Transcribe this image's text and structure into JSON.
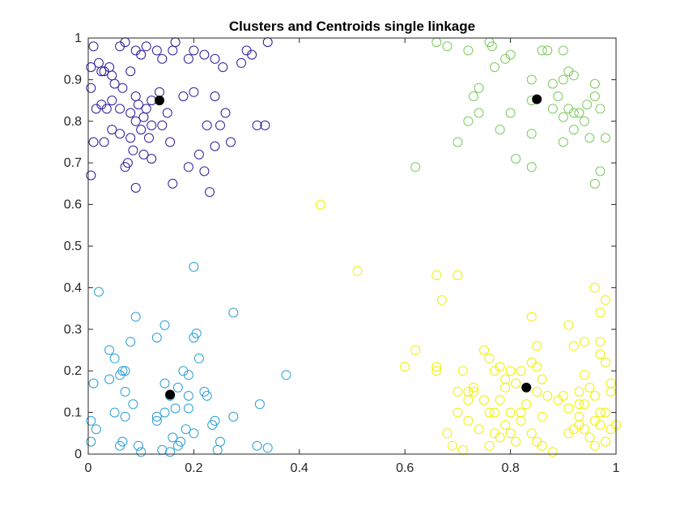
{
  "chart_data": {
    "type": "scatter",
    "title": "Clusters and Centroids single linkage",
    "xlabel": "",
    "ylabel": "",
    "xlim": [
      0,
      1
    ],
    "ylim": [
      0,
      1
    ],
    "xticks": [
      "0",
      "0.2",
      "0.4",
      "0.6",
      "0.8",
      "1"
    ],
    "yticks": [
      "0",
      "0.1",
      "0.2",
      "0.3",
      "0.4",
      "0.5",
      "0.6",
      "0.7",
      "0.8",
      "0.9",
      "1"
    ],
    "grid": false,
    "legend": "none",
    "series": [
      {
        "color": "#2b1c9a",
        "marker": "open-circle",
        "points": [
          [
            0.01,
            0.98
          ],
          [
            0.02,
            0.94
          ],
          [
            0.04,
            0.93
          ],
          [
            0.045,
            0.91
          ],
          [
            0.005,
            0.88
          ],
          [
            0.045,
            0.85
          ],
          [
            0.05,
            0.89
          ],
          [
            0.015,
            0.83
          ],
          [
            0.025,
            0.84
          ],
          [
            0.035,
            0.83
          ],
          [
            0.01,
            0.75
          ],
          [
            0.03,
            0.75
          ],
          [
            0.005,
            0.67
          ],
          [
            0.06,
            0.98
          ],
          [
            0.07,
            0.99
          ],
          [
            0.09,
            0.97
          ],
          [
            0.1,
            0.96
          ],
          [
            0.11,
            0.98
          ],
          [
            0.13,
            0.97
          ],
          [
            0.14,
            0.95
          ],
          [
            0.16,
            0.97
          ],
          [
            0.165,
            0.99
          ],
          [
            0.19,
            0.95
          ],
          [
            0.2,
            0.97
          ],
          [
            0.22,
            0.96
          ],
          [
            0.24,
            0.95
          ],
          [
            0.255,
            0.93
          ],
          [
            0.29,
            0.94
          ],
          [
            0.3,
            0.97
          ],
          [
            0.31,
            0.96
          ],
          [
            0.34,
            0.99
          ],
          [
            0.08,
            0.92
          ],
          [
            0.065,
            0.88
          ],
          [
            0.09,
            0.86
          ],
          [
            0.11,
            0.83
          ],
          [
            0.12,
            0.85
          ],
          [
            0.135,
            0.87
          ],
          [
            0.15,
            0.82
          ],
          [
            0.18,
            0.86
          ],
          [
            0.2,
            0.87
          ],
          [
            0.24,
            0.86
          ],
          [
            0.26,
            0.82
          ],
          [
            0.08,
            0.82
          ],
          [
            0.09,
            0.8
          ],
          [
            0.105,
            0.81
          ],
          [
            0.1,
            0.78
          ],
          [
            0.115,
            0.76
          ],
          [
            0.06,
            0.77
          ],
          [
            0.08,
            0.76
          ],
          [
            0.085,
            0.73
          ],
          [
            0.105,
            0.72
          ],
          [
            0.12,
            0.71
          ],
          [
            0.07,
            0.69
          ],
          [
            0.075,
            0.7
          ],
          [
            0.09,
            0.64
          ],
          [
            0.155,
            0.75
          ],
          [
            0.16,
            0.65
          ],
          [
            0.19,
            0.69
          ],
          [
            0.21,
            0.72
          ],
          [
            0.22,
            0.68
          ],
          [
            0.225,
            0.79
          ],
          [
            0.23,
            0.63
          ],
          [
            0.24,
            0.74
          ],
          [
            0.25,
            0.79
          ],
          [
            0.27,
            0.75
          ],
          [
            0.32,
            0.79
          ],
          [
            0.335,
            0.79
          ],
          [
            0.03,
            0.92
          ],
          [
            0.12,
            0.79
          ],
          [
            0.06,
            0.83
          ],
          [
            0.095,
            0.84
          ],
          [
            0.14,
            0.79
          ],
          [
            0.045,
            0.78
          ],
          [
            0.025,
            0.92
          ],
          [
            0.005,
            0.93
          ]
        ]
      },
      {
        "color": "#2a9fd6",
        "marker": "open-circle",
        "points": [
          [
            0.02,
            0.39
          ],
          [
            0.01,
            0.17
          ],
          [
            0.015,
            0.06
          ],
          [
            0.005,
            0.03
          ],
          [
            0.005,
            0.08
          ],
          [
            0.04,
            0.25
          ],
          [
            0.05,
            0.23
          ],
          [
            0.04,
            0.18
          ],
          [
            0.065,
            0.2
          ],
          [
            0.06,
            0.19
          ],
          [
            0.07,
            0.15
          ],
          [
            0.07,
            0.2
          ],
          [
            0.08,
            0.27
          ],
          [
            0.09,
            0.33
          ],
          [
            0.05,
            0.1
          ],
          [
            0.065,
            0.03
          ],
          [
            0.07,
            0.09
          ],
          [
            0.06,
            0.02
          ],
          [
            0.085,
            0.12
          ],
          [
            0.095,
            0.02
          ],
          [
            0.13,
            0.28
          ],
          [
            0.145,
            0.31
          ],
          [
            0.145,
            0.17
          ],
          [
            0.155,
            0.14
          ],
          [
            0.13,
            0.09
          ],
          [
            0.13,
            0.08
          ],
          [
            0.145,
            0.1
          ],
          [
            0.165,
            0.11
          ],
          [
            0.17,
            0.16
          ],
          [
            0.18,
            0.2
          ],
          [
            0.19,
            0.19
          ],
          [
            0.19,
            0.14
          ],
          [
            0.19,
            0.11
          ],
          [
            0.2,
            0.45
          ],
          [
            0.2,
            0.28
          ],
          [
            0.205,
            0.29
          ],
          [
            0.21,
            0.23
          ],
          [
            0.22,
            0.15
          ],
          [
            0.225,
            0.14
          ],
          [
            0.235,
            0.07
          ],
          [
            0.24,
            0.08
          ],
          [
            0.245,
            0.01
          ],
          [
            0.25,
            0.03
          ],
          [
            0.14,
            0.01
          ],
          [
            0.155,
            0.005
          ],
          [
            0.16,
            0.04
          ],
          [
            0.17,
            0.02
          ],
          [
            0.175,
            0.03
          ],
          [
            0.185,
            0.06
          ],
          [
            0.2,
            0.05
          ],
          [
            0.275,
            0.34
          ],
          [
            0.275,
            0.09
          ],
          [
            0.32,
            0.02
          ],
          [
            0.325,
            0.12
          ],
          [
            0.34,
            0.015
          ],
          [
            0.375,
            0.19
          ],
          [
            0.1,
            0.005
          ]
        ]
      },
      {
        "color": "#7bc95c",
        "marker": "open-circle",
        "points": [
          [
            0.66,
            0.99
          ],
          [
            0.68,
            0.98
          ],
          [
            0.72,
            0.97
          ],
          [
            0.76,
            0.99
          ],
          [
            0.765,
            0.98
          ],
          [
            0.77,
            0.93
          ],
          [
            0.79,
            0.95
          ],
          [
            0.8,
            0.96
          ],
          [
            0.86,
            0.97
          ],
          [
            0.87,
            0.97
          ],
          [
            0.9,
            0.97
          ],
          [
            0.9,
            0.9
          ],
          [
            0.91,
            0.92
          ],
          [
            0.92,
            0.91
          ],
          [
            0.96,
            0.89
          ],
          [
            0.84,
            0.9
          ],
          [
            0.88,
            0.89
          ],
          [
            0.89,
            0.86
          ],
          [
            0.91,
            0.83
          ],
          [
            0.93,
            0.82
          ],
          [
            0.945,
            0.84
          ],
          [
            0.96,
            0.86
          ],
          [
            0.97,
            0.83
          ],
          [
            0.74,
            0.88
          ],
          [
            0.73,
            0.86
          ],
          [
            0.78,
            0.78
          ],
          [
            0.8,
            0.82
          ],
          [
            0.84,
            0.85
          ],
          [
            0.84,
            0.77
          ],
          [
            0.88,
            0.83
          ],
          [
            0.9,
            0.81
          ],
          [
            0.92,
            0.78
          ],
          [
            0.94,
            0.8
          ],
          [
            0.95,
            0.76
          ],
          [
            0.96,
            0.65
          ],
          [
            0.97,
            0.68
          ],
          [
            0.98,
            0.76
          ],
          [
            0.92,
            0.82
          ],
          [
            0.9,
            0.75
          ],
          [
            0.84,
            0.69
          ],
          [
            0.81,
            0.71
          ],
          [
            0.74,
            0.82
          ],
          [
            0.72,
            0.8
          ],
          [
            0.7,
            0.75
          ],
          [
            0.62,
            0.69
          ]
        ]
      },
      {
        "color": "#f0f000",
        "marker": "open-circle",
        "points": [
          [
            0.44,
            0.6
          ],
          [
            0.51,
            0.44
          ],
          [
            0.66,
            0.43
          ],
          [
            0.7,
            0.43
          ],
          [
            0.67,
            0.37
          ],
          [
            0.62,
            0.25
          ],
          [
            0.6,
            0.21
          ],
          [
            0.66,
            0.2
          ],
          [
            0.66,
            0.21
          ],
          [
            0.7,
            0.15
          ],
          [
            0.71,
            0.2
          ],
          [
            0.72,
            0.15
          ],
          [
            0.73,
            0.15
          ],
          [
            0.75,
            0.25
          ],
          [
            0.76,
            0.23
          ],
          [
            0.77,
            0.2
          ],
          [
            0.78,
            0.21
          ],
          [
            0.79,
            0.18
          ],
          [
            0.8,
            0.2
          ],
          [
            0.81,
            0.17
          ],
          [
            0.82,
            0.2
          ],
          [
            0.84,
            0.22
          ],
          [
            0.85,
            0.26
          ],
          [
            0.85,
            0.21
          ],
          [
            0.86,
            0.18
          ],
          [
            0.84,
            0.33
          ],
          [
            0.91,
            0.31
          ],
          [
            0.92,
            0.26
          ],
          [
            0.94,
            0.27
          ],
          [
            0.96,
            0.4
          ],
          [
            0.97,
            0.34
          ],
          [
            0.97,
            0.27
          ],
          [
            0.98,
            0.37
          ],
          [
            0.97,
            0.24
          ],
          [
            0.98,
            0.22
          ],
          [
            0.99,
            0.17
          ],
          [
            0.99,
            0.15
          ],
          [
            0.94,
            0.19
          ],
          [
            0.93,
            0.15
          ],
          [
            0.95,
            0.16
          ],
          [
            0.94,
            0.12
          ],
          [
            0.93,
            0.09
          ],
          [
            0.92,
            0.06
          ],
          [
            0.91,
            0.05
          ],
          [
            0.93,
            0.07
          ],
          [
            0.94,
            0.06
          ],
          [
            0.95,
            0.04
          ],
          [
            0.96,
            0.02
          ],
          [
            0.97,
            0.07
          ],
          [
            0.98,
            0.1
          ],
          [
            0.99,
            0.06
          ],
          [
            1.0,
            0.07
          ],
          [
            0.98,
            0.03
          ],
          [
            0.96,
            0.08
          ],
          [
            0.7,
            0.1
          ],
          [
            0.71,
            0.01
          ],
          [
            0.69,
            0.02
          ],
          [
            0.68,
            0.05
          ],
          [
            0.76,
            0.02
          ],
          [
            0.77,
            0.05
          ],
          [
            0.79,
            0.07
          ],
          [
            0.8,
            0.05
          ],
          [
            0.82,
            0.08
          ],
          [
            0.84,
            0.05
          ],
          [
            0.85,
            0.03
          ],
          [
            0.86,
            0.02
          ],
          [
            0.88,
            0.005
          ],
          [
            0.83,
            0.12
          ],
          [
            0.85,
            0.15
          ],
          [
            0.87,
            0.14
          ],
          [
            0.76,
            0.1
          ],
          [
            0.77,
            0.1
          ],
          [
            0.78,
            0.13
          ],
          [
            0.79,
            0.16
          ],
          [
            0.75,
            0.13
          ],
          [
            0.73,
            0.16
          ],
          [
            0.72,
            0.13
          ],
          [
            0.74,
            0.06
          ],
          [
            0.82,
            0.1
          ],
          [
            0.89,
            0.13
          ],
          [
            0.9,
            0.14
          ],
          [
            0.91,
            0.11
          ],
          [
            0.93,
            0.12
          ],
          [
            0.96,
            0.14
          ],
          [
            0.97,
            0.1
          ],
          [
            0.81,
            0.03
          ],
          [
            0.78,
            0.04
          ],
          [
            0.72,
            0.08
          ],
          [
            0.8,
            0.1
          ],
          [
            0.86,
            0.09
          ]
        ]
      }
    ],
    "centroids": {
      "color": "#000000",
      "marker": "filled-circle",
      "points": [
        [
          0.135,
          0.85
        ],
        [
          0.85,
          0.853
        ],
        [
          0.155,
          0.143
        ],
        [
          0.83,
          0.16
        ]
      ]
    }
  }
}
